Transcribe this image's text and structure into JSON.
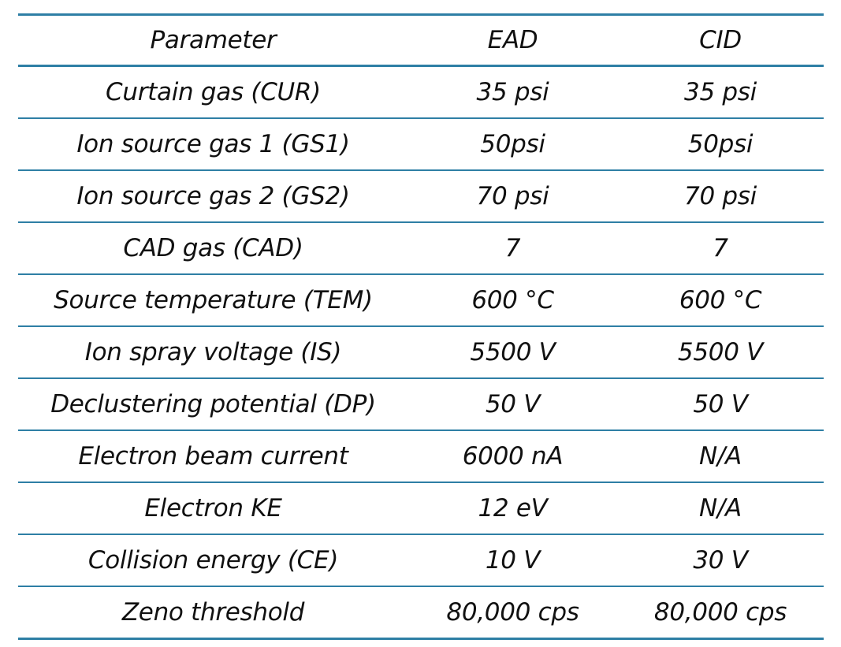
{
  "table": {
    "headers": [
      "Parameter",
      "EAD",
      "CID"
    ],
    "rows": [
      [
        "Curtain gas (CUR)",
        "35 psi",
        "35 psi"
      ],
      [
        "Ion source gas 1 (GS1)",
        "50psi",
        "50psi"
      ],
      [
        "Ion source gas 2 (GS2)",
        "70 psi",
        "70 psi"
      ],
      [
        "CAD gas (CAD)",
        "7",
        "7"
      ],
      [
        "Source temperature (TEM)",
        "600 °C",
        "600 °C"
      ],
      [
        "Ion spray voltage (IS)",
        "5500 V",
        "5500 V"
      ],
      [
        "Declustering potential (DP)",
        "50 V",
        "50 V"
      ],
      [
        "Electron beam current",
        "6000 nA",
        "N/A"
      ],
      [
        "Electron KE",
        "12 eV",
        "N/A"
      ],
      [
        "Collision energy (CE)",
        "10 V",
        "30 V"
      ],
      [
        "Zeno threshold",
        "80,000 cps",
        "80,000 cps"
      ]
    ]
  },
  "colors": {
    "rule": "#2e7fa5",
    "text": "#111111",
    "background": "#ffffff"
  }
}
